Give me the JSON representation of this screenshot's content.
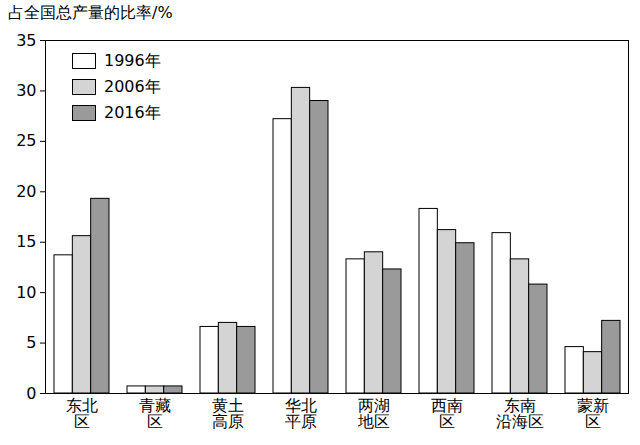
{
  "chart_data": {
    "type": "bar",
    "y_label": "占全国总产量的比率/%",
    "categories": [
      "东北区",
      "青藏区",
      "黄土高原",
      "华北平原",
      "两湖地区",
      "西南区",
      "东南沿海区",
      "蒙新区"
    ],
    "series": [
      {
        "name": "1996年",
        "color": "#ffffff",
        "values": [
          13.7,
          0.7,
          6.6,
          27.2,
          13.3,
          18.3,
          15.9,
          4.6
        ]
      },
      {
        "name": "2006年",
        "color": "#d4d4d4",
        "values": [
          15.6,
          0.7,
          7.0,
          30.3,
          14.0,
          16.2,
          13.3,
          4.1
        ]
      },
      {
        "name": "2016年",
        "color": "#9a9a9a",
        "values": [
          19.3,
          0.7,
          6.6,
          29.0,
          12.3,
          14.9,
          10.8,
          7.2
        ]
      }
    ],
    "ylim": [
      0,
      35
    ],
    "yticks": [
      0,
      5,
      10,
      15,
      20,
      25,
      30,
      35
    ],
    "legend": "top-left",
    "grid": false
  }
}
